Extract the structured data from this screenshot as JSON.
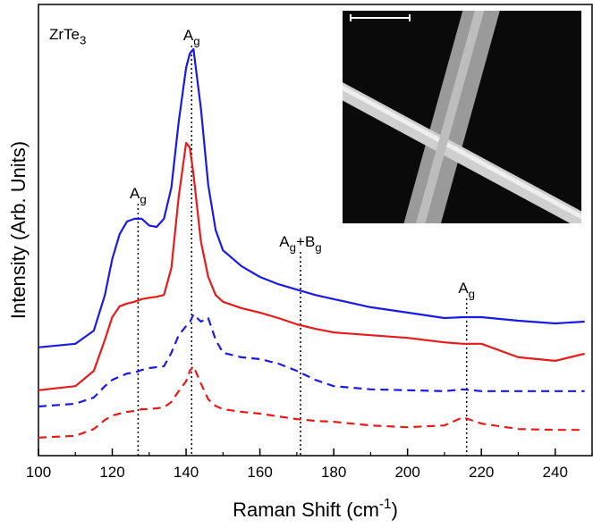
{
  "chart_data": {
    "type": "line",
    "title_parts": [
      {
        "text": "ZrTe"
      },
      {
        "sub": "3"
      }
    ],
    "xlabel_parts": [
      {
        "text": "Raman Shift (cm"
      },
      {
        "sup": "-1"
      },
      {
        "text": ")"
      }
    ],
    "ylabel": "Intensity (Arb. Units)",
    "xlim": [
      100,
      250
    ],
    "ylim": [
      0,
      100
    ],
    "xticks": [
      100,
      120,
      140,
      160,
      180,
      200,
      220,
      240
    ],
    "xminorticks": [
      110,
      130,
      150,
      170,
      190,
      210,
      230,
      250
    ],
    "x": [
      100,
      110,
      115,
      118,
      120,
      122,
      124,
      126,
      128,
      130,
      132,
      134,
      136,
      138,
      140,
      141,
      142,
      144,
      146,
      148,
      150,
      155,
      160,
      165,
      170,
      175,
      180,
      190,
      200,
      210,
      215,
      220,
      230,
      240,
      248
    ],
    "series": [
      {
        "color": "#1a1ae6",
        "dash": false,
        "values": [
          24,
          24.8,
          27.7,
          35.6,
          43.6,
          49.1,
          51.9,
          52.5,
          52.5,
          51,
          50.7,
          52.5,
          59.4,
          74,
          86,
          89.1,
          90.1,
          77,
          60,
          50,
          45.5,
          42,
          39.6,
          38,
          36.8,
          35.6,
          34.7,
          32.9,
          31.7,
          30.5,
          30.7,
          30.7,
          29.9,
          29.3,
          29.7
        ]
      },
      {
        "color": "#e81a1a",
        "dash": false,
        "values": [
          14.5,
          15.4,
          18.8,
          25.7,
          30.7,
          33.1,
          33.7,
          34.1,
          34.7,
          35,
          35.2,
          35.6,
          41.6,
          57.4,
          69.3,
          68.3,
          62.4,
          47.5,
          39.6,
          35.6,
          34.1,
          32.7,
          31.7,
          30.5,
          29.1,
          28.1,
          27.3,
          26.7,
          26.1,
          25.1,
          24.8,
          24.8,
          21.8,
          21,
          22.6
        ]
      },
      {
        "color": "#1a1ae6",
        "dash": true,
        "values": [
          10.9,
          11.5,
          12.9,
          15.4,
          16.8,
          17.5,
          18.2,
          18.4,
          19,
          19.4,
          19.6,
          19.8,
          22.8,
          26.7,
          28.7,
          29.5,
          31.3,
          29.7,
          30.5,
          25.7,
          22.8,
          21.8,
          21.4,
          20.4,
          18.8,
          16.8,
          15.4,
          14.7,
          14.5,
          14.3,
          14.7,
          14.3,
          14.3,
          14.3,
          14.3
        ]
      },
      {
        "color": "#e81a1a",
        "dash": true,
        "values": [
          4,
          4.4,
          5.9,
          7.9,
          8.9,
          9.3,
          9.7,
          9.9,
          10.3,
          10.3,
          10.5,
          10.7,
          11.9,
          14.3,
          16.5,
          18.8,
          19.8,
          16,
          12.5,
          11,
          10.3,
          9.7,
          9.3,
          8.7,
          8.1,
          7.7,
          7.5,
          6.7,
          6.3,
          6.7,
          8.5,
          7.1,
          5.9,
          5.7,
          5.7
        ]
      }
    ],
    "annotations": [
      {
        "x": 127,
        "parts": [
          {
            "text": "A"
          },
          {
            "sub": "g"
          }
        ]
      },
      {
        "x": 141.5,
        "parts": [
          {
            "text": "A"
          },
          {
            "sub": "g"
          }
        ]
      },
      {
        "x": 171,
        "parts": [
          {
            "text": "A"
          },
          {
            "sub": "g"
          },
          {
            "text": "+B"
          },
          {
            "sub": "g"
          }
        ]
      },
      {
        "x": 216,
        "parts": [
          {
            "text": "A"
          },
          {
            "sub": "g"
          }
        ]
      }
    ]
  }
}
